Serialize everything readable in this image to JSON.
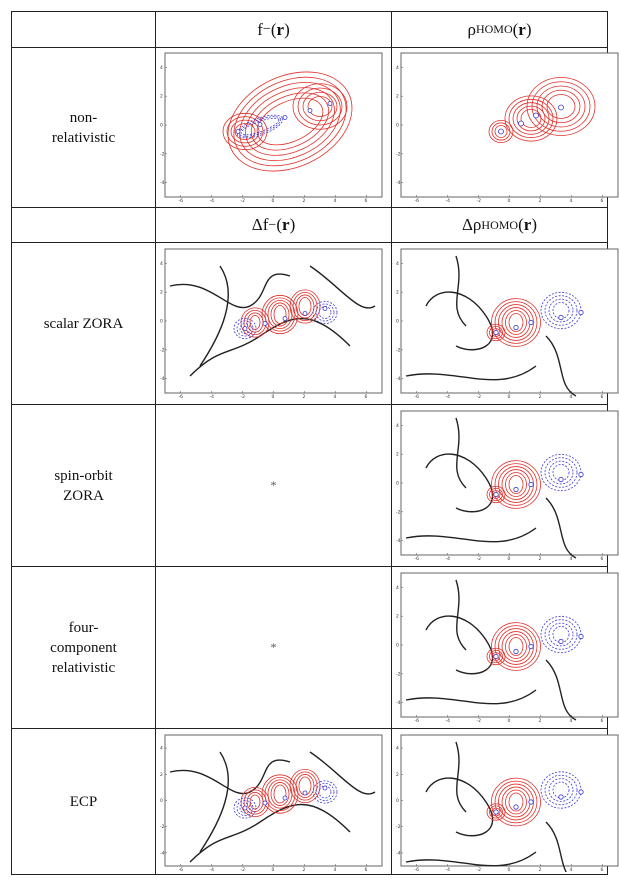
{
  "table": {
    "header_row_1": {
      "col1": "f",
      "col1_sup": "−",
      "col1_arg": "r",
      "col2": "ρ",
      "col2_sub": "HOMO",
      "col2_arg": "r"
    },
    "header_row_2": {
      "col1": "Δf",
      "col1_sup": "−",
      "col1_arg": "r",
      "col2": "Δρ",
      "col2_sub": "HOMO",
      "col2_arg": "r"
    },
    "rows": [
      {
        "label": "non-relativistic",
        "label_lines": [
          "non-",
          "relativistic"
        ]
      },
      {
        "label": "scalar ZORA",
        "label_lines": [
          "scalar ZORA"
        ]
      },
      {
        "label": "spin-orbit ZORA",
        "label_lines": [
          "spin-orbit",
          "ZORA"
        ],
        "col1_text": "*"
      },
      {
        "label": "four-component relativistic",
        "label_lines": [
          "four-",
          "component",
          "relativistic"
        ],
        "col1_text": "*"
      },
      {
        "label": "ECP",
        "label_lines": [
          "ECP"
        ]
      }
    ]
  },
  "plot_axes": {
    "x_ticks": [
      "-6",
      "-4",
      "-2",
      "0",
      "2",
      "4",
      "6"
    ],
    "y_ticks": [
      "4",
      "2",
      "0",
      "-2",
      "-4"
    ]
  },
  "colors": {
    "positive_contour": "#e0302a",
    "negative_contour": "#3a3ad6",
    "zero_contour": "#222222"
  }
}
